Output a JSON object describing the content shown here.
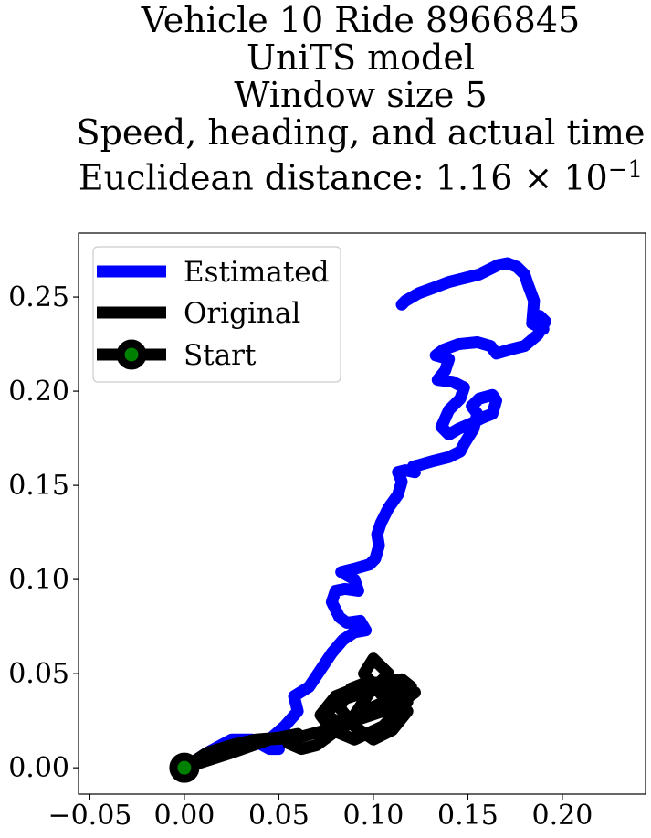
{
  "chart_data": {
    "type": "line",
    "title_lines": [
      "Vehicle 10 Ride 8966845",
      "UniTS model",
      "Window size 5",
      "Speed, heading, and actual time",
      "Euclidean distance: 1.16 × 10"
    ],
    "title_exponent": "−1",
    "xlabel": "",
    "ylabel": "",
    "xlim": [
      -0.056,
      0.244
    ],
    "ylim": [
      -0.014,
      0.284
    ],
    "xticks": [
      -0.05,
      0.0,
      0.05,
      0.1,
      0.15,
      0.2
    ],
    "xtick_labels": [
      "−0.05",
      "0.00",
      "0.05",
      "0.10",
      "0.15",
      "0.20"
    ],
    "yticks": [
      0.0,
      0.05,
      0.1,
      0.15,
      0.2,
      0.25
    ],
    "ytick_labels": [
      "0.00",
      "0.05",
      "0.10",
      "0.15",
      "0.20",
      "0.25"
    ],
    "grid": false,
    "legend_position": "top-left",
    "series": [
      {
        "name": "Estimated",
        "color": "#0000ff",
        "x": [
          0.0,
          0.012,
          0.025,
          0.036,
          0.045,
          0.05,
          0.045,
          0.053,
          0.06,
          0.058,
          0.066,
          0.072,
          0.078,
          0.084,
          0.09,
          0.096,
          0.093,
          0.086,
          0.082,
          0.078,
          0.08,
          0.085,
          0.092,
          0.09,
          0.083,
          0.091,
          0.098,
          0.101,
          0.103,
          0.102,
          0.104,
          0.108,
          0.113,
          0.115,
          0.113,
          0.117,
          0.122,
          0.121,
          0.125,
          0.132,
          0.14,
          0.146,
          0.148,
          0.153,
          0.155,
          0.152,
          0.156,
          0.163,
          0.165,
          0.163,
          0.158,
          0.152,
          0.145,
          0.14,
          0.136,
          0.14,
          0.146,
          0.148,
          0.142,
          0.134,
          0.138,
          0.14,
          0.133,
          0.137,
          0.145,
          0.155,
          0.162,
          0.165,
          0.172,
          0.18,
          0.187,
          0.191,
          0.188,
          0.19,
          0.184,
          0.185,
          0.182,
          0.18,
          0.176,
          0.171,
          0.166,
          0.162,
          0.156,
          0.148,
          0.14,
          0.132,
          0.124,
          0.117,
          0.115
        ],
        "y": [
          0.0,
          0.008,
          0.015,
          0.015,
          0.01,
          0.01,
          0.015,
          0.022,
          0.03,
          0.038,
          0.043,
          0.052,
          0.061,
          0.068,
          0.072,
          0.073,
          0.078,
          0.077,
          0.08,
          0.088,
          0.094,
          0.095,
          0.094,
          0.1,
          0.104,
          0.106,
          0.108,
          0.111,
          0.118,
          0.124,
          0.13,
          0.138,
          0.145,
          0.152,
          0.157,
          0.158,
          0.157,
          0.16,
          0.161,
          0.163,
          0.165,
          0.168,
          0.172,
          0.18,
          0.188,
          0.192,
          0.196,
          0.198,
          0.195,
          0.188,
          0.186,
          0.183,
          0.18,
          0.177,
          0.181,
          0.19,
          0.196,
          0.202,
          0.205,
          0.206,
          0.211,
          0.217,
          0.219,
          0.222,
          0.225,
          0.226,
          0.224,
          0.22,
          0.222,
          0.224,
          0.23,
          0.237,
          0.24,
          0.233,
          0.236,
          0.248,
          0.256,
          0.262,
          0.266,
          0.268,
          0.267,
          0.265,
          0.262,
          0.26,
          0.258,
          0.255,
          0.252,
          0.248,
          0.246
        ]
      },
      {
        "name": "Original",
        "color": "#000000",
        "x": [
          0.0,
          0.025,
          0.045,
          0.06,
          0.075,
          0.09,
          0.105,
          0.115,
          0.122,
          0.11,
          0.095,
          0.08,
          0.075,
          0.085,
          0.095,
          0.108,
          0.12,
          0.115,
          0.1,
          0.09,
          0.08,
          0.072,
          0.078,
          0.09,
          0.105,
          0.118,
          0.112,
          0.098,
          0.088,
          0.082,
          0.09,
          0.1,
          0.11,
          0.118,
          0.105,
          0.095,
          0.1,
          0.108,
          0.098,
          0.088,
          0.078,
          0.07,
          0.062,
          0.055,
          0.06,
          0.05,
          0.038,
          0.025,
          0.012,
          0.0
        ],
        "y": [
          0.0,
          0.008,
          0.015,
          0.016,
          0.02,
          0.025,
          0.03,
          0.035,
          0.04,
          0.043,
          0.04,
          0.035,
          0.028,
          0.022,
          0.03,
          0.036,
          0.043,
          0.047,
          0.045,
          0.042,
          0.038,
          0.028,
          0.02,
          0.015,
          0.022,
          0.035,
          0.04,
          0.046,
          0.042,
          0.032,
          0.022,
          0.015,
          0.02,
          0.03,
          0.038,
          0.05,
          0.058,
          0.05,
          0.04,
          0.025,
          0.018,
          0.012,
          0.01,
          0.013,
          0.018,
          0.016,
          0.015,
          0.012,
          0.008,
          0.0
        ]
      }
    ],
    "start_marker": {
      "name": "Start",
      "x": 0.0,
      "y": 0.0,
      "edge_color": "#000000",
      "face_color": "#008000"
    }
  }
}
